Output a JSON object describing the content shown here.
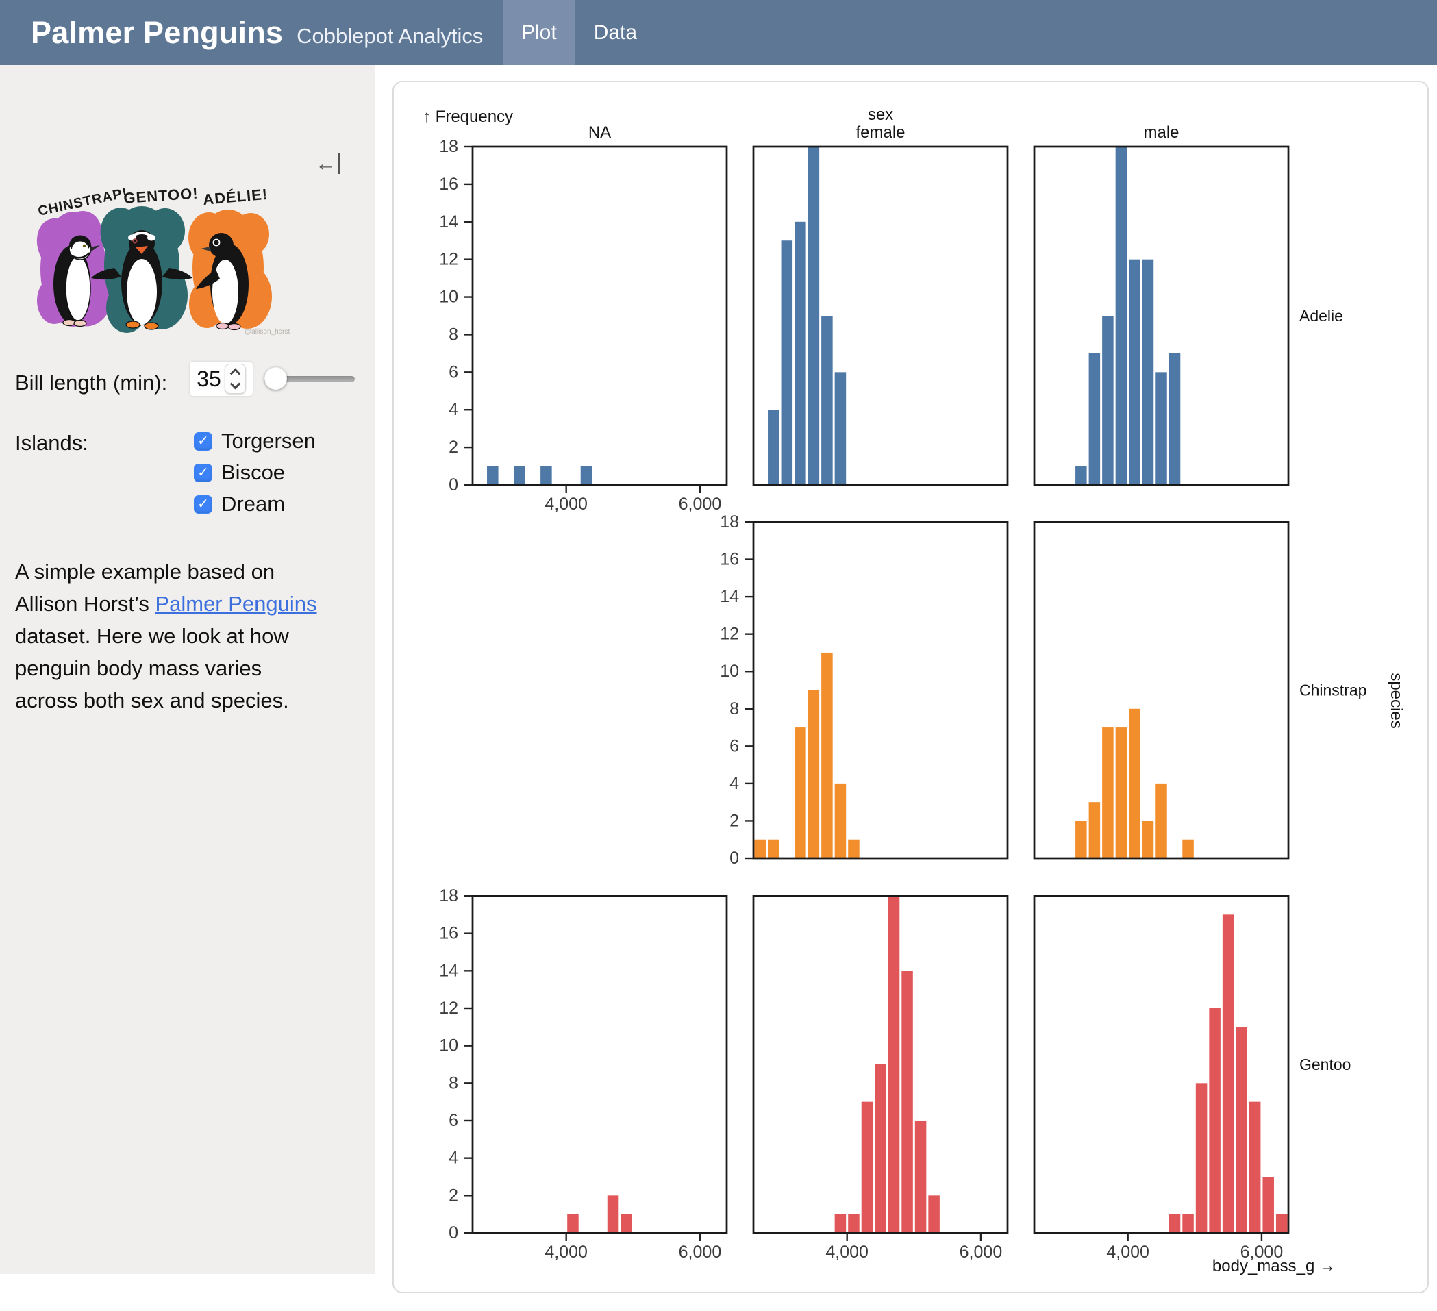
{
  "header": {
    "title": "Palmer Penguins",
    "subtitle": "Cobblepot Analytics",
    "tabs": [
      {
        "label": "Plot",
        "active": true
      },
      {
        "label": "Data",
        "active": false
      }
    ]
  },
  "sidebar": {
    "collapse_icon": "collapse-sidebar",
    "artwork": {
      "labels": [
        "CHINSTRAP!",
        "GENTOO!",
        "ADÉLIE!"
      ],
      "signature": "@allison_horst",
      "splash_colors": {
        "chinstrap": "#b15fc6",
        "gentoo": "#2f6a6e",
        "adelie": "#f0822f"
      }
    },
    "bill_length": {
      "label": "Bill length (min):",
      "value": "35"
    },
    "islands": {
      "label": "Islands:",
      "options": [
        {
          "label": "Torgersen",
          "checked": true
        },
        {
          "label": "Biscoe",
          "checked": true
        },
        {
          "label": "Dream",
          "checked": true
        }
      ]
    },
    "description": {
      "text_before": "A simple example based on Allison Horst’s ",
      "link_text": "Palmer Penguins",
      "text_after": " dataset. Here we look at how penguin body mass varies across both sex and species."
    }
  },
  "theme": {
    "header_bg": "#5d7795",
    "header_tab_active_bg": "#7b8fad",
    "sidebar_bg": "#f0efed",
    "link": "#3b6fdd",
    "checkbox_accent": "#3b82f7",
    "card_border": "#dcdcdc",
    "axis_text": "#3c3c3c",
    "frame": "#1a1a1a"
  },
  "chart_data": {
    "type": "bar",
    "subtype": "faceted-histogram",
    "ylabel": "Frequency",
    "xlabel": "body_mass_g",
    "fx_label": "sex",
    "fy_label": "species",
    "columns": [
      "NA",
      "female",
      "male"
    ],
    "rows": [
      "Adelie",
      "Chinstrap",
      "Gentoo"
    ],
    "x_domain": [
      2600,
      6400
    ],
    "y_domain": [
      0,
      18
    ],
    "x_ticks": [
      4000,
      6000
    ],
    "y_ticks": [
      0,
      2,
      4,
      6,
      8,
      10,
      12,
      14,
      16,
      18
    ],
    "bin_width": 200,
    "bins_format": "[bin_center_body_mass_g, frequency]",
    "grid": false,
    "legend": "none",
    "series_colors": {
      "Adelie": "#4e79a7",
      "Chinstrap": "#f28e2c",
      "Gentoo": "#e15759"
    },
    "facets": [
      {
        "fy": "Adelie",
        "fx": "NA",
        "bins": [
          [
            2900,
            1
          ],
          [
            3300,
            1
          ],
          [
            3700,
            1
          ],
          [
            4300,
            1
          ]
        ]
      },
      {
        "fy": "Adelie",
        "fx": "female",
        "bins": [
          [
            2900,
            4
          ],
          [
            3100,
            13
          ],
          [
            3300,
            14
          ],
          [
            3500,
            18
          ],
          [
            3700,
            9
          ],
          [
            3900,
            6
          ]
        ]
      },
      {
        "fy": "Adelie",
        "fx": "male",
        "bins": [
          [
            3300,
            1
          ],
          [
            3500,
            7
          ],
          [
            3700,
            9
          ],
          [
            3900,
            18
          ],
          [
            4100,
            12
          ],
          [
            4300,
            12
          ],
          [
            4500,
            6
          ],
          [
            4700,
            7
          ]
        ]
      },
      {
        "fy": "Chinstrap",
        "fx": "female",
        "bins": [
          [
            2700,
            1
          ],
          [
            2900,
            1
          ],
          [
            3300,
            7
          ],
          [
            3500,
            9
          ],
          [
            3700,
            11
          ],
          [
            3900,
            4
          ],
          [
            4100,
            1
          ]
        ]
      },
      {
        "fy": "Chinstrap",
        "fx": "male",
        "bins": [
          [
            3300,
            2
          ],
          [
            3500,
            3
          ],
          [
            3700,
            7
          ],
          [
            3900,
            7
          ],
          [
            4100,
            8
          ],
          [
            4300,
            2
          ],
          [
            4500,
            4
          ],
          [
            4900,
            1
          ]
        ]
      },
      {
        "fy": "Gentoo",
        "fx": "NA",
        "bins": [
          [
            4100,
            1
          ],
          [
            4700,
            2
          ],
          [
            4900,
            1
          ]
        ]
      },
      {
        "fy": "Gentoo",
        "fx": "female",
        "bins": [
          [
            3900,
            1
          ],
          [
            4100,
            1
          ],
          [
            4300,
            7
          ],
          [
            4500,
            9
          ],
          [
            4700,
            18
          ],
          [
            4900,
            14
          ],
          [
            5100,
            6
          ],
          [
            5300,
            2
          ]
        ]
      },
      {
        "fy": "Gentoo",
        "fx": "male",
        "bins": [
          [
            4700,
            1
          ],
          [
            4900,
            1
          ],
          [
            5100,
            8
          ],
          [
            5300,
            12
          ],
          [
            5500,
            17
          ],
          [
            5700,
            11
          ],
          [
            5900,
            7
          ],
          [
            6100,
            3
          ],
          [
            6300,
            1
          ]
        ]
      }
    ]
  }
}
